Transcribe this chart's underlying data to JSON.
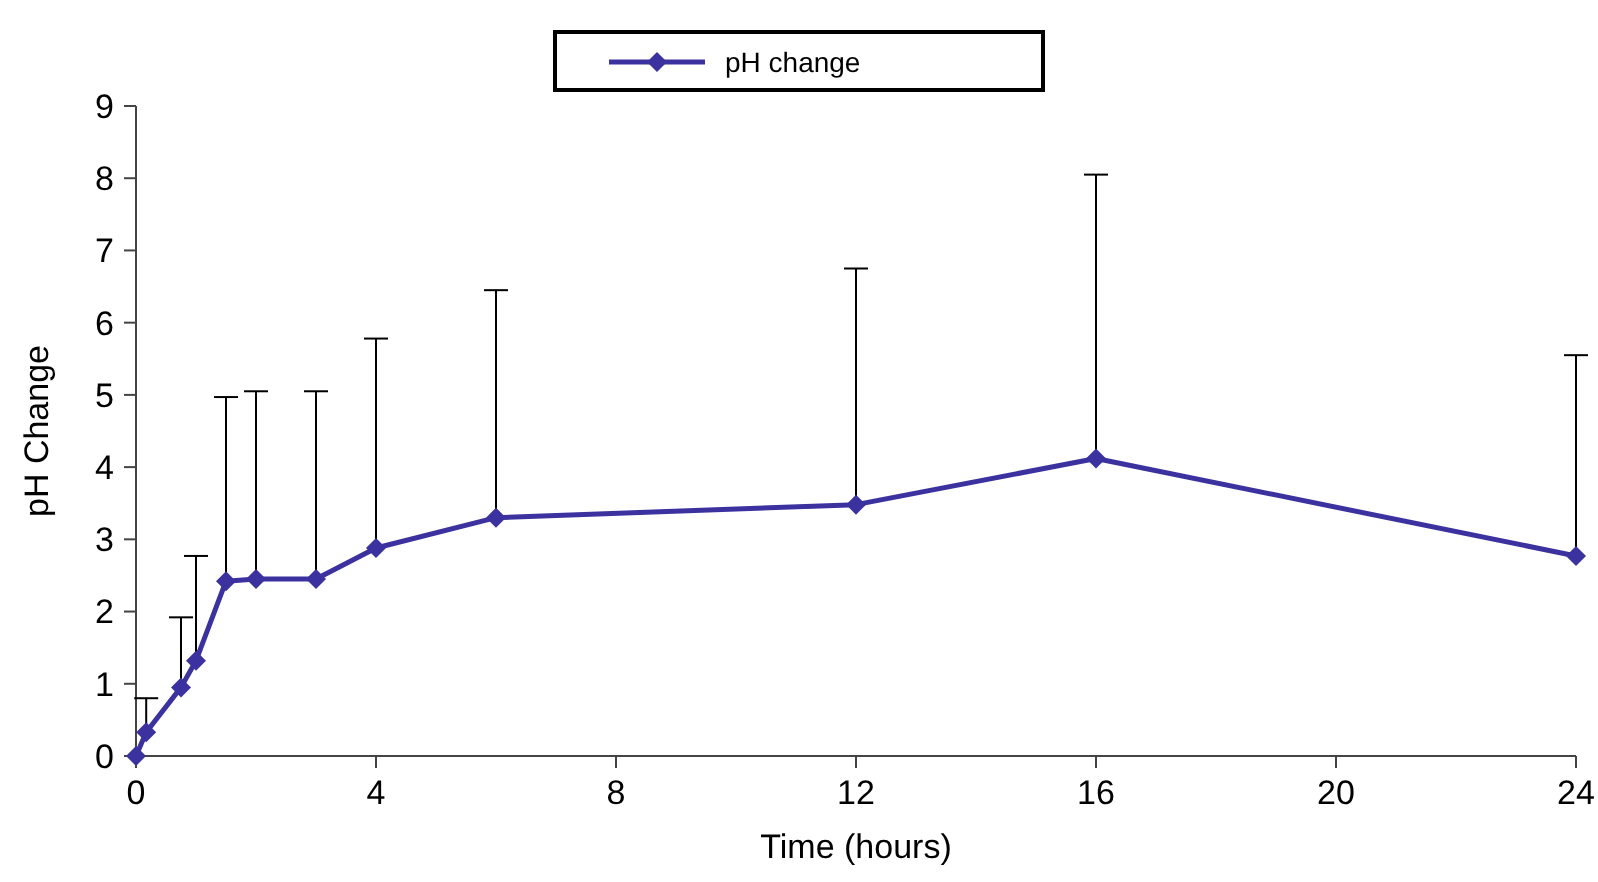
{
  "chart_data": {
    "type": "line",
    "xlabel": "Time (hours)",
    "ylabel": "pH Change",
    "x": [
      0,
      0.17,
      0.75,
      1,
      1.5,
      2,
      3,
      4,
      6,
      12,
      16,
      24
    ],
    "series": [
      {
        "name": "pH change",
        "color": "#3b32a0",
        "values": [
          0,
          0.33,
          0.95,
          1.32,
          2.42,
          2.45,
          2.45,
          2.88,
          3.3,
          3.48,
          4.12,
          2.77
        ],
        "errors": [
          null,
          [
            0.33,
            0.8
          ],
          [
            0.95,
            1.92
          ],
          [
            1.32,
            2.77
          ],
          [
            2.42,
            4.97
          ],
          [
            2.45,
            5.05
          ],
          [
            2.45,
            5.05
          ],
          [
            2.88,
            5.78
          ],
          [
            3.3,
            6.45
          ],
          [
            3.48,
            6.75
          ],
          [
            4.12,
            8.05
          ],
          [
            2.77,
            5.55
          ]
        ]
      }
    ],
    "xlim": [
      0,
      24
    ],
    "xticks": [
      0,
      4,
      8,
      12,
      16,
      20,
      24
    ],
    "ylim": [
      0,
      9
    ],
    "yticks": [
      0,
      1,
      2,
      3,
      4,
      5,
      6,
      7,
      8,
      9
    ],
    "marker": "diamond",
    "line_style": "solid",
    "grid": false,
    "legend": "top"
  }
}
